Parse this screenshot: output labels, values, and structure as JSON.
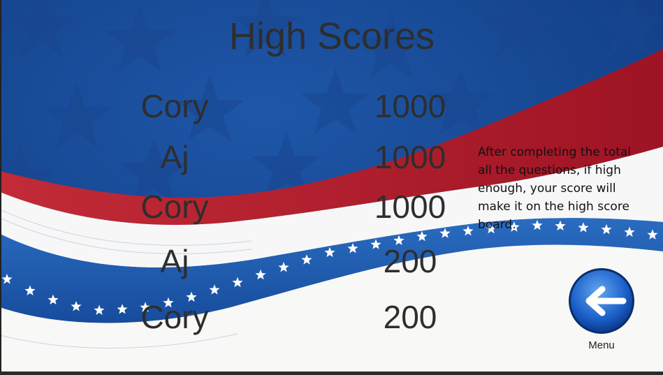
{
  "title": "High Scores",
  "scores": [
    {
      "name": "Cory",
      "score": "1000"
    },
    {
      "name": "Aj",
      "score": "1000"
    },
    {
      "name": "Cory",
      "score": "1000"
    },
    {
      "name": "Aj",
      "score": "200"
    },
    {
      "name": "Cory",
      "score": "200"
    }
  ],
  "info_text": "After completing the total all the questions, if high enough, your score will make it on the high score board.",
  "menu": {
    "label": "Menu",
    "icon": "back-arrow-icon"
  },
  "colors": {
    "blue": "#1b4d9a",
    "red": "#b3202e",
    "white": "#ffffff",
    "text": "#2e2e2e"
  }
}
